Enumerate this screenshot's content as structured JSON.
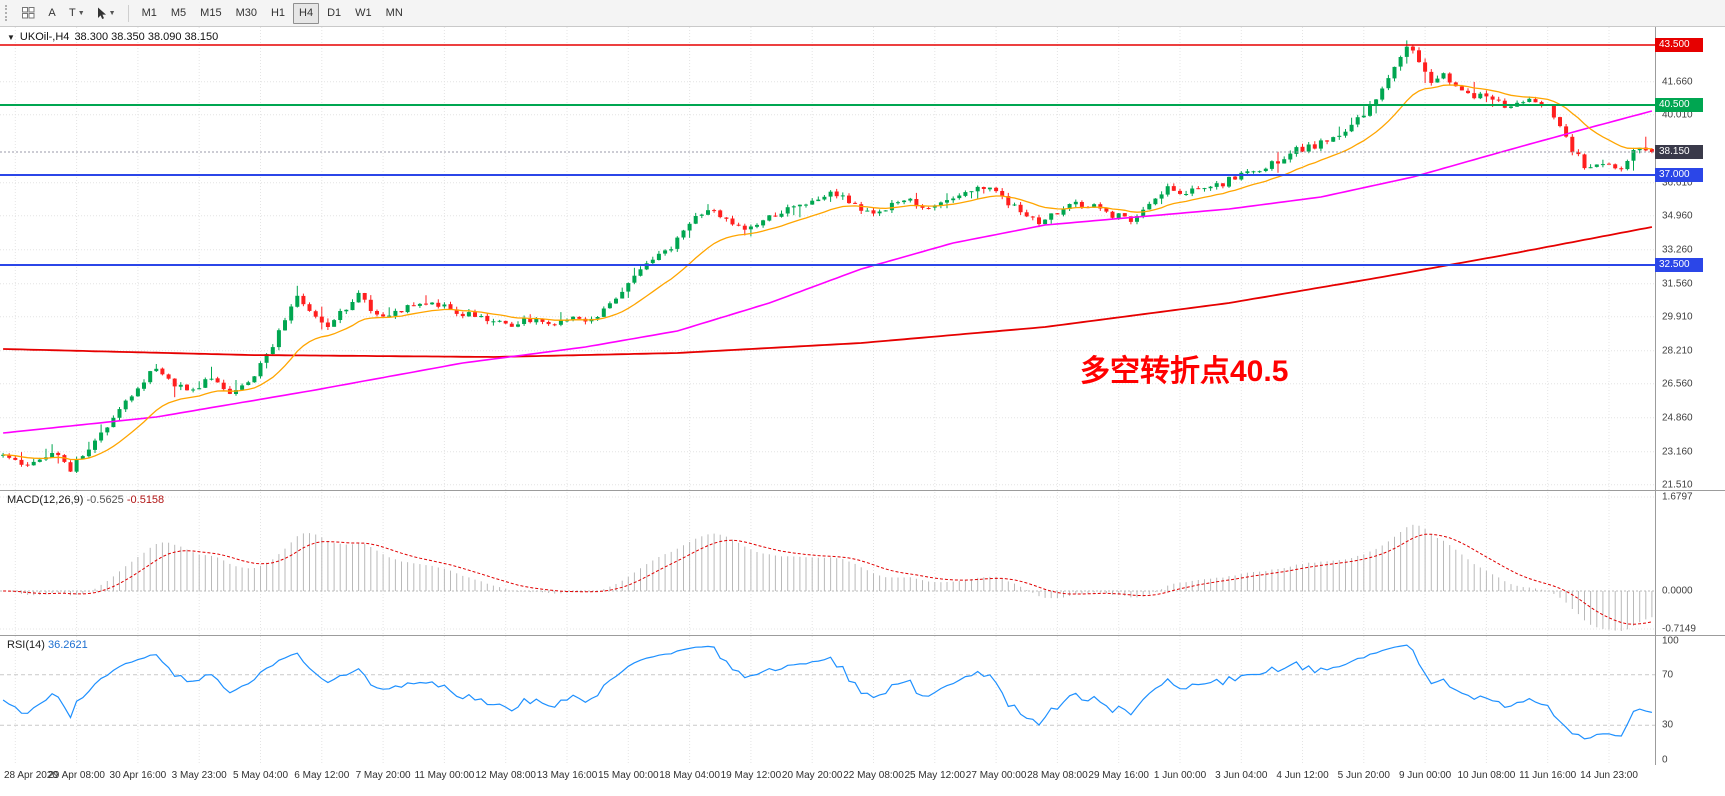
{
  "toolbar": {
    "tool_buttons": [
      {
        "id": "annotate",
        "label": "A"
      },
      {
        "id": "text",
        "label": "T"
      }
    ],
    "timeframes": [
      "M1",
      "M5",
      "M15",
      "M30",
      "H1",
      "H4",
      "D1",
      "W1",
      "MN"
    ],
    "active_timeframe": "H4"
  },
  "chart": {
    "symbol_header": {
      "symbol": "UKOil-,H4",
      "ohlc": "38.300 38.350 38.090 38.150"
    },
    "annotation": {
      "text": "多空转折点40.5",
      "color": "#ff0000"
    }
  },
  "panels": {
    "macd": {
      "label": "MACD(12,26,9)",
      "value_main": "-0.5625",
      "value_signal": "-0.5158"
    },
    "rsi": {
      "label": "RSI(14)",
      "value": "36.2621"
    }
  },
  "chart_data": {
    "type": "candlestick",
    "title": "UKOil-,H4",
    "bars": 270,
    "seed": 11,
    "last_ohlc": {
      "open": 38.3,
      "high": 38.35,
      "low": 38.09,
      "close": 38.15
    },
    "bid_price": 38.15,
    "candle_colors": {
      "up": "#00a650",
      "down": "#ff1f1f"
    },
    "price_path": [
      [
        0,
        23.0
      ],
      [
        4,
        22.4
      ],
      [
        8,
        23.1
      ],
      [
        11,
        22.3
      ],
      [
        14,
        23.3
      ],
      [
        18,
        24.9
      ],
      [
        22,
        26.5
      ],
      [
        25,
        27.3
      ],
      [
        28,
        26.6
      ],
      [
        31,
        26.2
      ],
      [
        34,
        26.9
      ],
      [
        37,
        26.2
      ],
      [
        40,
        26.7
      ],
      [
        43,
        27.9
      ],
      [
        46,
        29.8
      ],
      [
        48,
        31.1
      ],
      [
        50,
        30.1
      ],
      [
        53,
        29.5
      ],
      [
        56,
        30.4
      ],
      [
        58,
        31.2
      ],
      [
        61,
        29.9
      ],
      [
        64,
        30.1
      ],
      [
        67,
        30.5
      ],
      [
        70,
        30.7
      ],
      [
        74,
        30.2
      ],
      [
        78,
        29.8
      ],
      [
        82,
        29.5
      ],
      [
        86,
        29.8
      ],
      [
        89,
        29.5
      ],
      [
        92,
        29.9
      ],
      [
        95,
        29.6
      ],
      [
        98,
        30.3
      ],
      [
        101,
        31.1
      ],
      [
        104,
        32.4
      ],
      [
        107,
        32.9
      ],
      [
        110,
        33.7
      ],
      [
        113,
        34.9
      ],
      [
        115,
        35.3
      ],
      [
        118,
        34.8
      ],
      [
        121,
        34.2
      ],
      [
        124,
        34.8
      ],
      [
        127,
        35.2
      ],
      [
        130,
        35.6
      ],
      [
        133,
        35.8
      ],
      [
        136,
        36.1
      ],
      [
        139,
        35.4
      ],
      [
        142,
        35.1
      ],
      [
        145,
        35.5
      ],
      [
        148,
        35.7
      ],
      [
        151,
        35.3
      ],
      [
        154,
        35.8
      ],
      [
        157,
        36.1
      ],
      [
        160,
        36.4
      ],
      [
        163,
        35.9
      ],
      [
        166,
        35.1
      ],
      [
        169,
        34.6
      ],
      [
        172,
        35.2
      ],
      [
        175,
        35.5
      ],
      [
        178,
        35.4
      ],
      [
        181,
        35.0
      ],
      [
        184,
        34.8
      ],
      [
        187,
        35.4
      ],
      [
        190,
        36.3
      ],
      [
        193,
        36.1
      ],
      [
        196,
        36.5
      ],
      [
        199,
        36.6
      ],
      [
        202,
        37.1
      ],
      [
        205,
        37.3
      ],
      [
        208,
        37.7
      ],
      [
        211,
        38.3
      ],
      [
        214,
        38.4
      ],
      [
        217,
        38.9
      ],
      [
        220,
        39.5
      ],
      [
        222,
        40.1
      ],
      [
        224,
        40.7
      ],
      [
        226,
        41.7
      ],
      [
        228,
        43.0
      ],
      [
        229,
        43.5
      ],
      [
        231,
        42.7
      ],
      [
        233,
        41.7
      ],
      [
        235,
        42.0
      ],
      [
        237,
        41.3
      ],
      [
        240,
        41.0
      ],
      [
        243,
        40.7
      ],
      [
        246,
        40.4
      ],
      [
        249,
        40.8
      ],
      [
        252,
        40.3
      ],
      [
        254,
        39.5
      ],
      [
        256,
        38.3
      ],
      [
        258,
        37.5
      ],
      [
        260,
        37.4
      ],
      [
        262,
        37.7
      ],
      [
        264,
        37.3
      ],
      [
        266,
        38.1
      ],
      [
        268,
        38.4
      ],
      [
        269,
        38.2
      ]
    ],
    "moving_averages": [
      {
        "name": "ma-fast",
        "type": "ema",
        "period": 16,
        "color": "#ffa500",
        "width": 1.3
      },
      {
        "name": "ma-mid",
        "color": "#ff00ff",
        "width": 1.6,
        "path": [
          [
            0,
            24.1
          ],
          [
            25,
            24.9
          ],
          [
            50,
            26.2
          ],
          [
            75,
            27.6
          ],
          [
            95,
            28.4
          ],
          [
            110,
            29.2
          ],
          [
            125,
            30.6
          ],
          [
            140,
            32.3
          ],
          [
            155,
            33.6
          ],
          [
            170,
            34.5
          ],
          [
            185,
            34.9
          ],
          [
            200,
            35.3
          ],
          [
            215,
            35.9
          ],
          [
            230,
            36.9
          ],
          [
            245,
            38.2
          ],
          [
            258,
            39.3
          ],
          [
            269,
            40.2
          ]
        ]
      },
      {
        "name": "ma-slow",
        "color": "#e60000",
        "width": 1.8,
        "path": [
          [
            0,
            28.3
          ],
          [
            40,
            28.0
          ],
          [
            80,
            27.9
          ],
          [
            110,
            28.1
          ],
          [
            140,
            28.6
          ],
          [
            170,
            29.4
          ],
          [
            200,
            30.6
          ],
          [
            225,
            31.9
          ],
          [
            245,
            33.0
          ],
          [
            269,
            34.4
          ]
        ]
      }
    ],
    "horizontal_lines": [
      {
        "price": 43.5,
        "label": "43.500",
        "color": "#e60000",
        "style": "solid",
        "width": 1.4
      },
      {
        "price": 40.5,
        "label": "40.500",
        "color": "#00a651",
        "style": "solid",
        "width": 2
      },
      {
        "price": 38.15,
        "label": "38.150",
        "color": "#3a3a4a",
        "line_color": "#9898a8",
        "style": "dotted",
        "width": 1
      },
      {
        "price": 37.0,
        "label": "37.000",
        "color": "#2b46e8",
        "style": "solid",
        "width": 2
      },
      {
        "price": 32.5,
        "label": "32.500",
        "color": "#2b46e8",
        "style": "solid",
        "width": 2
      }
    ],
    "y_axis": {
      "max": 44.4,
      "min": 21.25,
      "labels": [
        "41.660",
        "40.010",
        "36.610",
        "34.960",
        "33.260",
        "31.560",
        "29.910",
        "28.210",
        "26.560",
        "24.860",
        "23.160",
        "21.510"
      ]
    },
    "x_axis": {
      "labels": [
        "28 Apr 2020",
        "29 Apr 08:00",
        "30 Apr 16:00",
        "3 May 23:00",
        "5 May 04:00",
        "6 May 12:00",
        "7 May 20:00",
        "11 May 00:00",
        "12 May 08:00",
        "13 May 16:00",
        "15 May 00:00",
        "18 May 04:00",
        "19 May 12:00",
        "20 May 20:00",
        "22 May 08:00",
        "25 May 12:00",
        "27 May 00:00",
        "28 May 08:00",
        "29 May 16:00",
        "1 Jun 00:00",
        "3 Jun 04:00",
        "4 Jun 12:00",
        "5 Jun 20:00",
        "9 Jun 00:00",
        "10 Jun 08:00",
        "11 Jun 16:00",
        "14 Jun 23:00"
      ]
    },
    "indicators": [
      {
        "name": "MACD",
        "params": "12,26,9",
        "values": [
          -0.5625,
          -0.5158
        ],
        "scale_labels": [
          "1.6797",
          "0.0000",
          "-0.7149"
        ],
        "histogram_color": "#b9b9b9",
        "signal_color": "#e00000"
      },
      {
        "name": "RSI",
        "params": "14",
        "value": 36.2621,
        "levels": [
          70,
          30
        ],
        "scale_labels": [
          "100",
          "70",
          "30",
          "0"
        ],
        "line_color": "#1e90ff"
      }
    ],
    "grid_color": "#e4e4e4",
    "panel_border_color": "#9c9c9c"
  }
}
